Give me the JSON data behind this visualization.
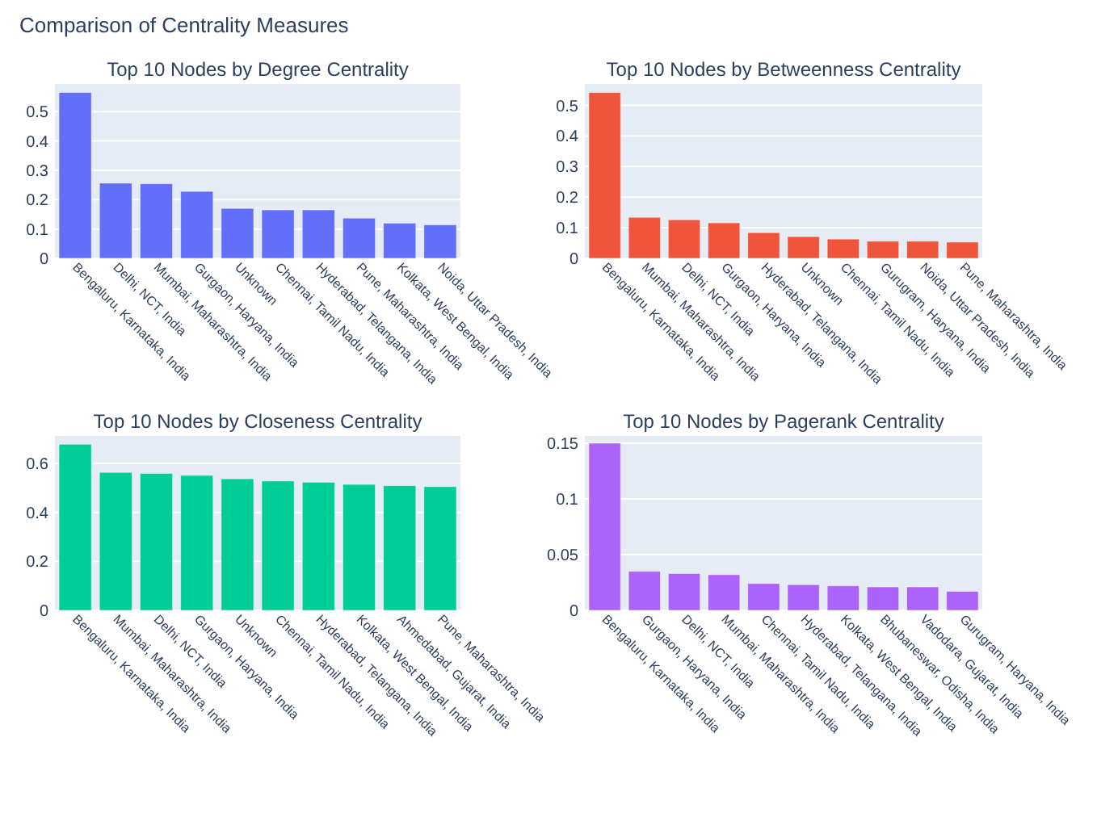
{
  "chart_data": [
    {
      "type": "bar",
      "title": "Top 10 Nodes by Degree Centrality",
      "annotations": [
        "Comparison of Centrality Measures"
      ],
      "categories": [
        "Bengaluru, Karnataka, India",
        "Delhi, NCT, India",
        "Mumbai, Maharashtra, India",
        "Gurgaon, Haryana, India",
        "Unknown",
        "Chennai, Tamil Nadu, India",
        "Hyderabad, Telangana, India",
        "Pune, Maharashtra, India",
        "Kolkata, West Bengal, India",
        "Noida, Uttar Pradesh, India"
      ],
      "values": [
        0.565,
        0.256,
        0.254,
        0.228,
        0.17,
        0.165,
        0.165,
        0.137,
        0.12,
        0.114
      ],
      "color": "#636efa",
      "ylim": [
        0,
        0.594
      ],
      "yticks": [
        0,
        0.1,
        0.2,
        0.3,
        0.4,
        0.5
      ],
      "grid": "y"
    },
    {
      "type": "bar",
      "title": "Top 10 Nodes by Betweenness Centrality",
      "categories": [
        "Bengaluru, Karnataka, India",
        "Mumbai, Maharashtra, India",
        "Delhi, NCT, India",
        "Gurgaon, Haryana, India",
        "Hyderabad, Telangana, India",
        "Unknown",
        "Chennai, Tamil Nadu, India",
        "Gurugram, Haryana, India",
        "Noida, Uttar Pradesh, India",
        "Pune, Maharashtra, India"
      ],
      "values": [
        0.542,
        0.134,
        0.126,
        0.116,
        0.084,
        0.071,
        0.063,
        0.056,
        0.056,
        0.053
      ],
      "color": "#ef553b",
      "ylim": [
        0,
        0.57
      ],
      "yticks": [
        0,
        0.1,
        0.2,
        0.3,
        0.4,
        0.5
      ],
      "grid": "y"
    },
    {
      "type": "bar",
      "title": "Top 10 Nodes by Closeness Centrality",
      "categories": [
        "Bengaluru, Karnataka, India",
        "Mumbai, Maharashtra, India",
        "Delhi, NCT, India",
        "Gurgaon, Haryana, India",
        "Unknown",
        "Chennai, Tamil Nadu, India",
        "Hyderabad, Telangana, India",
        "Kolkata, West Bengal, India",
        "Ahmedabad, Gujarat, India",
        "Pune, Maharashtra, India"
      ],
      "values": [
        0.678,
        0.563,
        0.559,
        0.551,
        0.537,
        0.528,
        0.523,
        0.514,
        0.509,
        0.505
      ],
      "color": "#00cc96",
      "ylim": [
        0,
        0.712
      ],
      "yticks": [
        0,
        0.2,
        0.4,
        0.6
      ],
      "grid": "y"
    },
    {
      "type": "bar",
      "title": "Top 10 Nodes by Pagerank Centrality",
      "categories": [
        "Bengaluru, Karnataka, India",
        "Gurgaon, Haryana, India",
        "Delhi, NCT, India",
        "Mumbai, Maharashtra, India",
        "Chennai, Tamil Nadu, India",
        "Hyderabad, Telangana, India",
        "Kolkata, West Bengal, India",
        "Bhubaneswar, Odisha, India",
        "Vadodara, Gujarat, India",
        "Gurugram, Haryana, India"
      ],
      "values": [
        0.15,
        0.035,
        0.033,
        0.032,
        0.024,
        0.023,
        0.022,
        0.021,
        0.021,
        0.017
      ],
      "color": "#ab63fa",
      "ylim": [
        0,
        0.1565
      ],
      "yticks": [
        0,
        0.05,
        0.1,
        0.15
      ],
      "grid": "y"
    }
  ]
}
